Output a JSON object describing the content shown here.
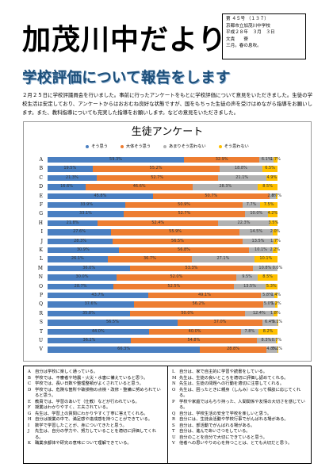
{
  "masthead": {
    "title": "加茂川中だより"
  },
  "issue": {
    "number": "第 ４５号 （１３７）",
    "school": "京都市立加茂川中学校",
    "date": "平成２８年　３月　３日",
    "editor": "文責　　寮",
    "season": "三月。春の息吹。"
  },
  "headline": "学校評価について報告をします",
  "intro": "２月２５日に学校評議員会を行いました。事前に行ったアンケートをもとに学校評価について意見をいただきました。生徒の学校生活は安定しており、アンケートからはおおむね良好な状態ですが、国をもちった生徒の声を受けはめながら指導をお願いします。また、教科指導についても充実した指導をお願いします。などの意見をいただきました。",
  "chart_data": {
    "type": "bar",
    "title": "生徒アンケート",
    "orientation": "horizontal-stacked-100",
    "legend": [
      "そう思う",
      "大体そう思う",
      "あまりそう思わない",
      "そう思わない"
    ],
    "legend_position": "top",
    "colors": [
      "#4a7fc1",
      "#ed7d31",
      "#b2b2b2",
      "#ffc000"
    ],
    "categories": [
      "A",
      "B",
      "C",
      "D",
      "E",
      "F",
      "G",
      "H",
      "I",
      "J",
      "K",
      "L",
      "M",
      "N",
      "O",
      "P",
      "Q",
      "R",
      "S",
      "T",
      "U",
      "V"
    ],
    "series": [
      {
        "name": "そう思う",
        "values": [
          59.3,
          19.5,
          21.3,
          16.6,
          45.8,
          33.9,
          33.1,
          21.8,
          27.6,
          28.3,
          30.9,
          26.1,
          36.0,
          30.0,
          28.7,
          43.7,
          37.6,
          35.8,
          56.5,
          44.0,
          36.2,
          66.3
        ]
      },
      {
        "name": "大体そう思う",
        "values": [
          32.9,
          55.2,
          52.7,
          46.6,
          50.7,
          50.9,
          52.7,
          52.4,
          55.9,
          56.5,
          56.8,
          36.7,
          53.3,
          52.0,
          52.5,
          49.1,
          56.2,
          50.0,
          37.0,
          40.0,
          54.8,
          28.8
        ]
      },
      {
        "name": "あまりそう思わない",
        "values": [
          6.1,
          18.8,
          21.1,
          28.3,
          2.8,
          7.7,
          10.0,
          22.3,
          14.5,
          13.5,
          10.1,
          27.1,
          10.8,
          9.5,
          13.5,
          5.8,
          5.0,
          12.4,
          6.4,
          7.8,
          8.3,
          4.8
        ]
      },
      {
        "name": "そう思わない",
        "values": [
          1.7,
          6.5,
          4.9,
          8.5,
          0.7,
          7.5,
          4.2,
          3.5,
          2.0,
          1.7,
          2.2,
          10.1,
          0.0,
          8.5,
          5.3,
          1.4,
          1.2,
          1.8,
          0.1,
          8.2,
          0.7,
          0.1
        ]
      }
    ],
    "labels": [
      [
        "59.3%",
        "32.9%",
        "6.1%",
        "1.7%"
      ],
      [
        "19.5%",
        "55.2%",
        "18.8%",
        "6.5%"
      ],
      [
        "21.3%",
        "52.7%",
        "21.1%",
        "4.9%"
      ],
      [
        "16.6%",
        "46.6%",
        "28.3%",
        "8.5%"
      ],
      [
        "45.8%",
        "50.7%",
        "2.8%",
        "0.7%"
      ],
      [
        "33.9%",
        "50.9%",
        "7.7%",
        "7.5%"
      ],
      [
        "33.1%",
        "52.7%",
        "10.0%",
        "4.2%"
      ],
      [
        "21.8%",
        "52.4%",
        "22.3%",
        "3.5%"
      ],
      [
        "27.6%",
        "55.9%",
        "14.5%",
        "2.0%"
      ],
      [
        "28.3%",
        "56.5%",
        "13.5%",
        "1.7%"
      ],
      [
        "30.9%",
        "56.8%",
        "10.1%",
        "2.2%"
      ],
      [
        "26.1%",
        "36.7%",
        "27.1%",
        "10.1%"
      ],
      [
        "36.0%",
        "53.3%",
        "10.8%",
        "0.0%"
      ],
      [
        "30.0%",
        "52.0%",
        "9.5%",
        "8.5%"
      ],
      [
        "28.7%",
        "52.5%",
        "13.5%",
        "5.3%"
      ],
      [
        "43.7%",
        "49.1%",
        "5.8%",
        "1.4%"
      ],
      [
        "37.6%",
        "56.2%",
        "5.0%",
        "1.2%"
      ],
      [
        "35.8%",
        "50.0%",
        "12.4%",
        "1.8%"
      ],
      [
        "56.5%",
        "37.0%",
        "6.4%",
        "0.1%"
      ],
      [
        "44.0%",
        "40.0%",
        "7.8%",
        "8.2%"
      ],
      [
        "36.2%",
        "54.8%",
        "8.3%",
        "0.7%"
      ],
      [
        "66.3%",
        "28.8%",
        "4.8%",
        "0.1%"
      ]
    ]
  },
  "items_left": [
    {
      "letter": "A",
      "text": "自分は学校に楽しく通っている。"
    },
    {
      "letter": "B",
      "text": "学校では、不審者や地震・火災・水害に備えていると思う。"
    },
    {
      "letter": "C",
      "text": "学校では、長い日数や整理整頓がよくされていると思う。"
    },
    {
      "letter": "D",
      "text": "学校では、危険な箇所や破損物の点検・改修・整備に努められていると思う。"
    },
    {
      "letter": "E",
      "text": "教員では、学習のあいて（仕教）などが行われている。"
    },
    {
      "letter": "F",
      "text": "授業はわかりやすく、工夫されている。"
    },
    {
      "letter": "G",
      "text": "先生は、学習上の質問にわかりやすく丁寧に答えてくれる。"
    },
    {
      "letter": "H",
      "text": "自分は授業の中で、満足感や達成感を持つことができている。"
    },
    {
      "letter": "I",
      "text": "数学で学習したことが、身についてきたと思う。"
    },
    {
      "letter": "J",
      "text": "先生は、自分の学力や、努力していることを適切に評価してくれる。"
    },
    {
      "letter": "K",
      "text": "職業京都体や研究の意味について理解できている。"
    }
  ],
  "items_right": [
    {
      "letter": "L",
      "text": "自分は、家で自主的に学習や読書をしている。"
    },
    {
      "letter": "M",
      "text": "先生は、生徒の良いところを適切に評価し認めてくれる。"
    },
    {
      "letter": "N",
      "text": "先生は、生徒の問題への行動を適切に注意してくれる。"
    },
    {
      "letter": "O",
      "text": "先生は、困ったときに親身（しんみ）になって相談に応じてくれる。"
    },
    {
      "letter": "P",
      "text": "学校や家庭ではもちり持った、人間関係や友情の大切さを感じている。"
    },
    {
      "letter": "Q",
      "text": "自分は、学校生活の安全で学校を楽しいと思う。"
    },
    {
      "letter": "R",
      "text": "自分には、生徒会活動や学校行事でがんばれる場がある。"
    },
    {
      "letter": "S",
      "text": "自分は、部活動でがんばれる場がある。"
    },
    {
      "letter": "T",
      "text": "自分は、進んであいさつをしている。"
    },
    {
      "letter": "U",
      "text": "自分のことを自分で大切にできていると思う。"
    },
    {
      "letter": "V",
      "text": "他者への思いやりの心を持つことは、とても大切だと思う。"
    }
  ]
}
